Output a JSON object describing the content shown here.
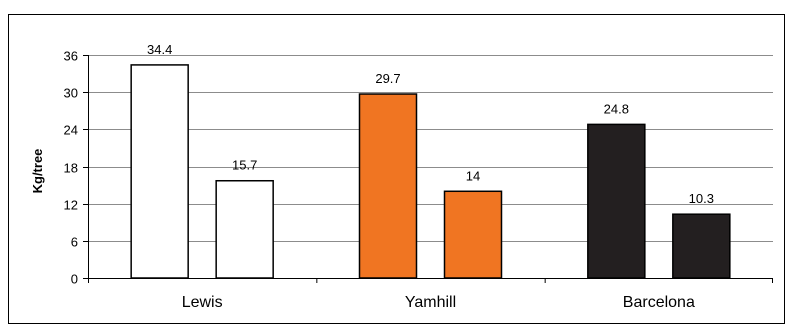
{
  "chart_data": {
    "type": "bar",
    "title": "",
    "xlabel": "",
    "ylabel": "Kg/tree",
    "ylim": [
      0,
      36
    ],
    "yticks": [
      "0",
      "6",
      "12",
      "18",
      "24",
      "30",
      "36"
    ],
    "grid": true,
    "legend": "none",
    "groups": [
      {
        "category": "Lewis",
        "bars": [
          {
            "value": 34.4,
            "label": "34.4",
            "fill": "#ffffff"
          },
          {
            "value": 15.7,
            "label": "15.7",
            "fill": "#ffffff"
          }
        ]
      },
      {
        "category": "Yamhill",
        "bars": [
          {
            "value": 29.7,
            "label": "29.7",
            "fill": "#f07522"
          },
          {
            "value": 14,
            "label": "14",
            "fill": "#f07522"
          }
        ]
      },
      {
        "category": "Barcelona",
        "bars": [
          {
            "value": 24.8,
            "label": "24.8",
            "fill": "#231f20"
          },
          {
            "value": 10.3,
            "label": "10.3",
            "fill": "#231f20"
          }
        ]
      }
    ]
  }
}
